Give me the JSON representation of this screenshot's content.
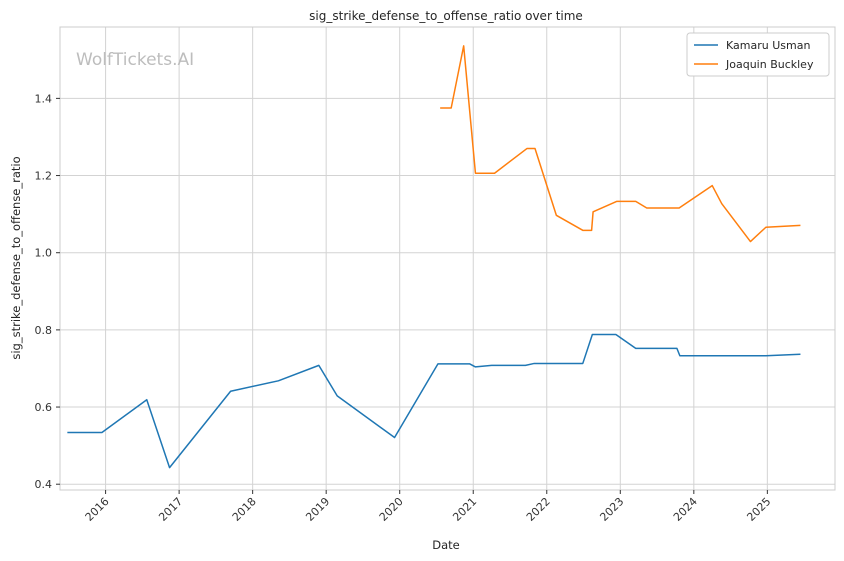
{
  "chart_data": {
    "type": "line",
    "title": "sig_strike_defense_to_offense_ratio over time",
    "xlabel": "Date",
    "ylabel": "sig_strike_defense_to_offense_ratio",
    "watermark": "WolfTickets.AI",
    "xlim": [
      2015.38,
      2025.92
    ],
    "ylim": [
      0.385,
      1.585
    ],
    "x_ticks": [
      {
        "value": 2016,
        "label": "2016"
      },
      {
        "value": 2017,
        "label": "2017"
      },
      {
        "value": 2018,
        "label": "2018"
      },
      {
        "value": 2019,
        "label": "2019"
      },
      {
        "value": 2020,
        "label": "2020"
      },
      {
        "value": 2021,
        "label": "2021"
      },
      {
        "value": 2022,
        "label": "2022"
      },
      {
        "value": 2023,
        "label": "2023"
      },
      {
        "value": 2024,
        "label": "2024"
      },
      {
        "value": 2025,
        "label": "2025"
      }
    ],
    "y_ticks": [
      {
        "value": 0.4,
        "label": "0.4"
      },
      {
        "value": 0.6,
        "label": "0.6"
      },
      {
        "value": 0.8,
        "label": "0.8"
      },
      {
        "value": 1.0,
        "label": "1.0"
      },
      {
        "value": 1.2,
        "label": "1.2"
      },
      {
        "value": 1.4,
        "label": "1.4"
      }
    ],
    "grid": true,
    "legend_position": "top-right",
    "series": [
      {
        "name": "Kamaru Usman",
        "color": "#1f77b4",
        "points": [
          [
            2015.48,
            0.534
          ],
          [
            2015.95,
            0.534
          ],
          [
            2016.56,
            0.619
          ],
          [
            2016.87,
            0.443
          ],
          [
            2017.7,
            0.641
          ],
          [
            2018.35,
            0.668
          ],
          [
            2018.9,
            0.708
          ],
          [
            2019.15,
            0.629
          ],
          [
            2019.93,
            0.521
          ],
          [
            2020.52,
            0.712
          ],
          [
            2020.95,
            0.712
          ],
          [
            2021.03,
            0.704
          ],
          [
            2021.25,
            0.708
          ],
          [
            2021.71,
            0.708
          ],
          [
            2021.83,
            0.713
          ],
          [
            2022.49,
            0.713
          ],
          [
            2022.62,
            0.788
          ],
          [
            2022.94,
            0.788
          ],
          [
            2023.21,
            0.752
          ],
          [
            2023.77,
            0.752
          ],
          [
            2023.81,
            0.733
          ],
          [
            2024.25,
            0.733
          ],
          [
            2024.98,
            0.733
          ],
          [
            2025.45,
            0.737
          ]
        ]
      },
      {
        "name": "Joaquin Buckley",
        "color": "#ff7f0e",
        "points": [
          [
            2020.55,
            1.375
          ],
          [
            2020.7,
            1.375
          ],
          [
            2020.87,
            1.536
          ],
          [
            2021.03,
            1.206
          ],
          [
            2021.29,
            1.206
          ],
          [
            2021.73,
            1.27
          ],
          [
            2021.84,
            1.27
          ],
          [
            2022.13,
            1.097
          ],
          [
            2022.49,
            1.058
          ],
          [
            2022.61,
            1.058
          ],
          [
            2022.63,
            1.106
          ],
          [
            2022.95,
            1.133
          ],
          [
            2023.21,
            1.133
          ],
          [
            2023.36,
            1.116
          ],
          [
            2023.8,
            1.116
          ],
          [
            2024.25,
            1.174
          ],
          [
            2024.38,
            1.127
          ],
          [
            2024.77,
            1.029
          ],
          [
            2024.98,
            1.066
          ],
          [
            2025.45,
            1.071
          ]
        ]
      }
    ]
  }
}
